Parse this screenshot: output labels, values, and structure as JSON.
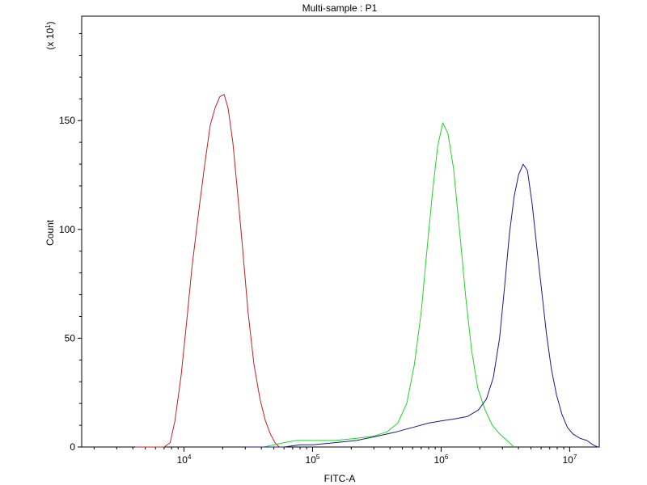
{
  "chart_data": {
    "type": "line",
    "title": "Multi-sample : P1",
    "xlabel": "FITC-A",
    "ylabel": "Count",
    "y_multiplier_label": "(x 10",
    "y_multiplier_exp": "1",
    "x_scale": "log",
    "xlim": [
      1600,
      17000000
    ],
    "ylim": [
      0,
      198
    ],
    "grid": false,
    "legend": "none",
    "x_ticks": [
      {
        "value": 10000,
        "base": "10",
        "exp": "4"
      },
      {
        "value": 100000,
        "base": "10",
        "exp": "5"
      },
      {
        "value": 1000000,
        "base": "10",
        "exp": "6"
      },
      {
        "value": 10000000,
        "base": "10",
        "exp": "7"
      }
    ],
    "y_ticks": [
      0,
      50,
      100,
      150
    ],
    "series": [
      {
        "color": "#c02020",
        "points": [
          [
            4200,
            0
          ],
          [
            7000,
            0
          ],
          [
            7800,
            2
          ],
          [
            8500,
            12
          ],
          [
            9500,
            33
          ],
          [
            10500,
            58
          ],
          [
            11500,
            82
          ],
          [
            13000,
            108
          ],
          [
            14500,
            130
          ],
          [
            16000,
            148
          ],
          [
            17500,
            156
          ],
          [
            19000,
            161
          ],
          [
            20500,
            162
          ],
          [
            22000,
            156
          ],
          [
            24000,
            140
          ],
          [
            26000,
            118
          ],
          [
            28500,
            92
          ],
          [
            31500,
            62
          ],
          [
            35000,
            38
          ],
          [
            39000,
            22
          ],
          [
            43000,
            12
          ],
          [
            47000,
            6
          ],
          [
            51000,
            2
          ],
          [
            55000,
            0
          ]
        ]
      },
      {
        "color": "#22d22a",
        "points": [
          [
            42000,
            0
          ],
          [
            50000,
            1
          ],
          [
            60000,
            2
          ],
          [
            75000,
            3
          ],
          [
            100000,
            3
          ],
          [
            150000,
            3
          ],
          [
            220000,
            4
          ],
          [
            300000,
            5
          ],
          [
            380000,
            7
          ],
          [
            460000,
            11
          ],
          [
            540000,
            20
          ],
          [
            620000,
            38
          ],
          [
            700000,
            62
          ],
          [
            780000,
            92
          ],
          [
            860000,
            118
          ],
          [
            940000,
            138
          ],
          [
            1030000,
            149
          ],
          [
            1130000,
            144
          ],
          [
            1250000,
            128
          ],
          [
            1400000,
            98
          ],
          [
            1560000,
            68
          ],
          [
            1730000,
            44
          ],
          [
            1930000,
            27
          ],
          [
            2200000,
            17
          ],
          [
            2500000,
            10
          ],
          [
            2850000,
            6
          ],
          [
            3250000,
            3
          ],
          [
            3700000,
            0
          ]
        ]
      },
      {
        "color": "#1a1a8c",
        "points": [
          [
            30000,
            0
          ],
          [
            40000,
            0
          ],
          [
            60000,
            0
          ],
          [
            80000,
            1
          ],
          [
            100000,
            1
          ],
          [
            150000,
            2
          ],
          [
            220000,
            3
          ],
          [
            320000,
            5
          ],
          [
            450000,
            7
          ],
          [
            600000,
            9
          ],
          [
            800000,
            11
          ],
          [
            1000000,
            12
          ],
          [
            1300000,
            13
          ],
          [
            1600000,
            14
          ],
          [
            1950000,
            17
          ],
          [
            2250000,
            22
          ],
          [
            2550000,
            32
          ],
          [
            2850000,
            50
          ],
          [
            3100000,
            72
          ],
          [
            3400000,
            98
          ],
          [
            3700000,
            115
          ],
          [
            4000000,
            125
          ],
          [
            4350000,
            130
          ],
          [
            4700000,
            127
          ],
          [
            5100000,
            112
          ],
          [
            5550000,
            92
          ],
          [
            6050000,
            72
          ],
          [
            6600000,
            52
          ],
          [
            7200000,
            36
          ],
          [
            7900000,
            24
          ],
          [
            8700000,
            15
          ],
          [
            9600000,
            9
          ],
          [
            10600000,
            6
          ],
          [
            12000000,
            4
          ],
          [
            13600000,
            3
          ],
          [
            15200000,
            1
          ],
          [
            16500000,
            0
          ]
        ]
      }
    ]
  }
}
